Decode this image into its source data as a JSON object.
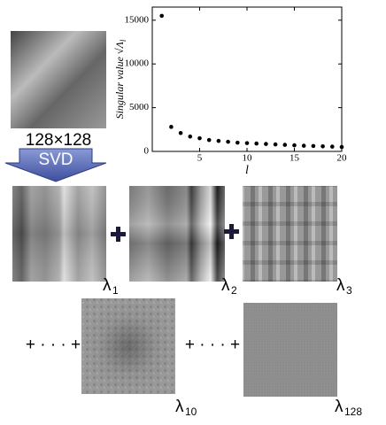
{
  "chart_data": {
    "type": "scatter",
    "x_label": "l",
    "y_label": "Singular value √Λ",
    "y_label_sub": "l",
    "x": [
      1,
      2,
      3,
      4,
      5,
      6,
      7,
      8,
      9,
      10,
      11,
      12,
      13,
      14,
      15,
      16,
      17,
      18,
      19,
      20
    ],
    "series": [
      {
        "color": "#000000",
        "values": [
          15500,
          2800,
          2100,
          1700,
          1500,
          1300,
          1200,
          1100,
          1000,
          950,
          900,
          850,
          800,
          750,
          700,
          650,
          620,
          580,
          550,
          500
        ]
      }
    ],
    "xlim": [
      0,
      20
    ],
    "ylim": [
      0,
      16500
    ],
    "xticks": [
      5,
      10,
      15,
      20
    ],
    "yticks": [
      0,
      5000,
      10000,
      15000
    ]
  },
  "image_size": "128×128",
  "arrow_label": "SVD",
  "components": [
    {
      "symbol": "λ",
      "index": "1"
    },
    {
      "symbol": "λ",
      "index": "2"
    },
    {
      "symbol": "λ",
      "index": "3"
    },
    {
      "symbol": "λ",
      "index": "10"
    },
    {
      "symbol": "λ",
      "index": "128"
    }
  ],
  "ellipsis": "+ · · · +"
}
